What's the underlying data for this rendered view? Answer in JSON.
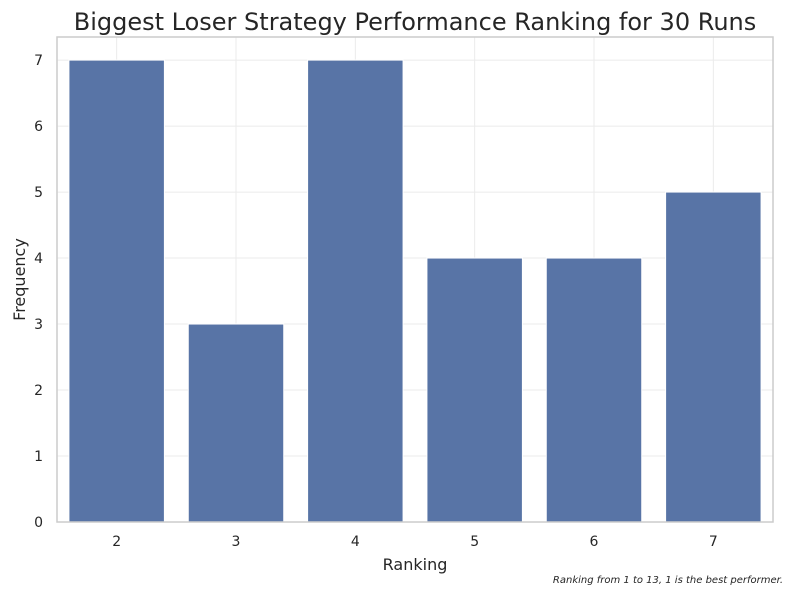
{
  "chart_data": {
    "type": "bar",
    "title": "Biggest Loser Strategy Performance Ranking for 30 Runs",
    "xlabel": "Ranking",
    "ylabel": "Frequency",
    "categories": [
      "2",
      "3",
      "4",
      "5",
      "6",
      "7"
    ],
    "values": [
      7,
      3,
      7,
      4,
      4,
      5
    ],
    "ylim": [
      0,
      7.35
    ],
    "yticks": [
      "0",
      "1",
      "2",
      "3",
      "4",
      "5",
      "6",
      "7"
    ],
    "grid": true,
    "bar_color": "#5874a6",
    "annotation": "Ranking from 1 to 13, 1 is the best performer."
  }
}
